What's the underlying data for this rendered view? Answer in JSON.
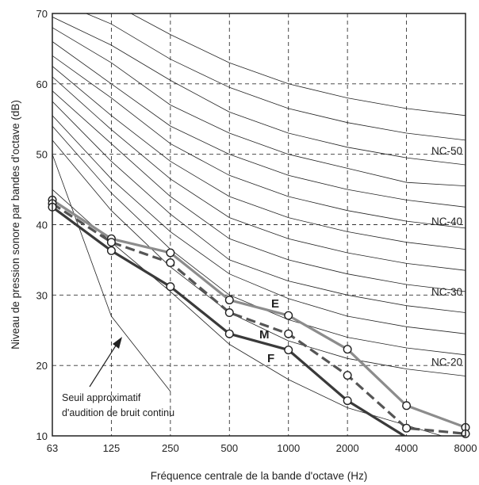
{
  "chart_data": {
    "type": "line",
    "title": "",
    "xlabel": "Fréquence centrale de la bande d'octave (Hz)",
    "ylabel": "Niveau de pression sonore par bandes d'octave (dB)",
    "categories": [
      "63",
      "125",
      "250",
      "500",
      "1000",
      "2000",
      "4000",
      "8000"
    ],
    "y_ticks": [
      "10",
      "20",
      "30",
      "40",
      "50",
      "60",
      "70"
    ],
    "ylim": [
      10,
      70
    ],
    "grid": "dashed",
    "nc_curve_labels": [
      {
        "name": "NC-50",
        "y": 50.5
      },
      {
        "name": "NC-40",
        "y": 40.5
      },
      {
        "name": "NC-30",
        "y": 30.5
      },
      {
        "name": "NC-20",
        "y": 20.5
      }
    ],
    "nc_curves": [
      [
        75,
        71.5,
        67,
        63,
        60,
        58,
        56.5,
        55.5
      ],
      [
        72,
        68.5,
        63.5,
        59.5,
        56.5,
        54.5,
        53,
        52
      ],
      [
        69.5,
        65.5,
        60.5,
        56,
        53,
        51,
        49.5,
        48.5
      ],
      [
        68,
        63,
        57,
        53,
        50,
        48,
        46,
        45.5
      ],
      [
        66,
        60,
        54,
        50,
        47,
        45,
        43.5,
        42.5
      ],
      [
        64,
        58,
        51.5,
        47,
        44,
        42,
        40.5,
        39.5
      ],
      [
        62.5,
        55.5,
        49,
        44,
        41,
        39,
        37.5,
        36.5
      ],
      [
        61,
        53.5,
        46.5,
        41,
        38,
        36,
        34.5,
        33.5
      ],
      [
        59,
        51.5,
        44,
        38,
        35,
        33,
        31.5,
        30.5
      ],
      [
        57.5,
        49,
        41.5,
        35,
        32,
        30,
        28.5,
        27.5
      ],
      [
        55.5,
        46.5,
        39,
        33,
        29.5,
        27,
        25.5,
        24.5
      ],
      [
        54,
        44.5,
        36.5,
        30,
        26.5,
        24,
        22.5,
        21.5
      ],
      [
        52,
        42,
        34,
        27.5,
        23.5,
        21,
        19.5,
        18.5
      ]
    ],
    "threshold_curves": [
      [
        50,
        27,
        16.3
      ],
      [
        45,
        37.5,
        30.5,
        23,
        18,
        14,
        11.5,
        9
      ]
    ],
    "series": [
      {
        "name": "E",
        "values": [
          43.5,
          38,
          36,
          29.3,
          27.1,
          22.3,
          14.3,
          11.2
        ],
        "color": "#8c8c8c",
        "style": "solid"
      },
      {
        "name": "M",
        "values": [
          43,
          37.5,
          34.6,
          27.5,
          24.5,
          18.6,
          11.1,
          10.3
        ],
        "color": "#555555",
        "style": "dashed"
      },
      {
        "name": "F",
        "values": [
          42.5,
          36.3,
          31.2,
          24.5,
          22.2,
          15,
          9.8,
          9.8
        ],
        "color": "#3a3a3a",
        "style": "solid"
      }
    ],
    "annotation": {
      "lines": [
        "Seuil approximatif",
        "d'audition de bruit continu"
      ]
    }
  }
}
